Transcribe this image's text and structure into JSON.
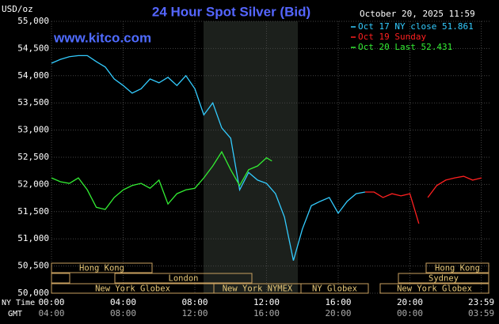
{
  "chart_data": {
    "type": "line",
    "title": "24 Hour Spot Silver (Bid)",
    "y_label": "USD/oz",
    "timestamp": "October 20, 2025 11:59",
    "watermark": "www.kitco.com",
    "x_label": "NY Time",
    "x2_label": "GMT",
    "xlim": [
      0,
      24
    ],
    "xticks": [
      {
        "value": 0,
        "label": "00:00",
        "gmt": "04:00"
      },
      {
        "value": 4,
        "label": "04:00",
        "gmt": "08:00"
      },
      {
        "value": 8,
        "label": "08:00",
        "gmt": "12:00"
      },
      {
        "value": 12,
        "label": "12:00",
        "gmt": "16:00"
      },
      {
        "value": 16,
        "label": "16:00",
        "gmt": "20:00"
      },
      {
        "value": 20,
        "label": "20:00",
        "gmt": "00:00"
      },
      {
        "value": 23.983,
        "label": "23:59",
        "gmt": "03:59"
      }
    ],
    "ylim": [
      50,
      55
    ],
    "yticks": [
      {
        "value": 50,
        "label": "50,000"
      },
      {
        "value": 50.5,
        "label": "50,500"
      },
      {
        "value": 51,
        "label": "51,000"
      },
      {
        "value": 51.5,
        "label": "51,500"
      },
      {
        "value": 52,
        "label": "52,000"
      },
      {
        "value": 52.5,
        "label": "52,500"
      },
      {
        "value": 53,
        "label": "53,000"
      },
      {
        "value": 53.5,
        "label": "53,500"
      },
      {
        "value": 54,
        "label": "54,000"
      },
      {
        "value": 54.5,
        "label": "54,500"
      },
      {
        "value": 55,
        "label": "55,000"
      }
    ],
    "grid": true,
    "series": [
      {
        "name": "Oct 17 NY close 51.861",
        "color": "#33ccff",
        "x": [
          0,
          0.5,
          1,
          1.5,
          2,
          2.5,
          3,
          3.5,
          4,
          4.5,
          5,
          5.5,
          6,
          6.5,
          7,
          7.5,
          8,
          8.5,
          9,
          9.5,
          10,
          10.5,
          11,
          11.5,
          12,
          12.5,
          13,
          13.5,
          14,
          14.5,
          15,
          15.5,
          16,
          16.5,
          17,
          17.5
        ],
        "values": [
          54.23,
          54.3,
          54.35,
          54.37,
          54.37,
          54.26,
          54.16,
          53.94,
          53.82,
          53.68,
          53.76,
          53.94,
          53.87,
          53.97,
          53.82,
          54.0,
          53.76,
          53.28,
          53.5,
          53.04,
          52.85,
          51.9,
          52.22,
          52.08,
          52.02,
          51.83,
          51.4,
          50.6,
          51.18,
          51.61,
          51.69,
          51.76,
          51.47,
          51.69,
          51.83,
          51.86
        ]
      },
      {
        "name": "Oct 19 Sunday",
        "color": "#ff2020",
        "x": [
          17.5,
          18,
          18.5,
          19,
          19.5,
          20,
          20.5,
          20.8,
          21,
          21.5,
          22,
          22.5,
          23,
          23.5,
          24
        ],
        "values": [
          51.86,
          51.86,
          51.76,
          51.83,
          51.79,
          51.83,
          51.28,
          null,
          51.76,
          51.98,
          52.08,
          52.12,
          52.15,
          52.08,
          52.12
        ]
      },
      {
        "name": "Oct 20 Last 52.431",
        "color": "#33ee33",
        "x": [
          0,
          0.5,
          1,
          1.5,
          2,
          2.5,
          3,
          3.5,
          4,
          4.5,
          5,
          5.5,
          6,
          6.5,
          7,
          7.5,
          8,
          8.5,
          9,
          9.5,
          10,
          10.5,
          11,
          11.5,
          12,
          12.3
        ],
        "values": [
          52.12,
          52.05,
          52.02,
          52.12,
          51.9,
          51.58,
          51.54,
          51.76,
          51.9,
          51.98,
          52.02,
          51.93,
          52.08,
          51.64,
          51.83,
          51.9,
          51.93,
          52.12,
          52.34,
          52.6,
          52.27,
          51.98,
          52.27,
          52.34,
          52.49,
          52.431
        ]
      }
    ],
    "sessions": [
      "Hong Kong",
      "London",
      "New York Globex",
      "New York NYMEX",
      "NY Globex",
      "Hong Kong",
      "Sydney",
      "New York Globex"
    ]
  }
}
